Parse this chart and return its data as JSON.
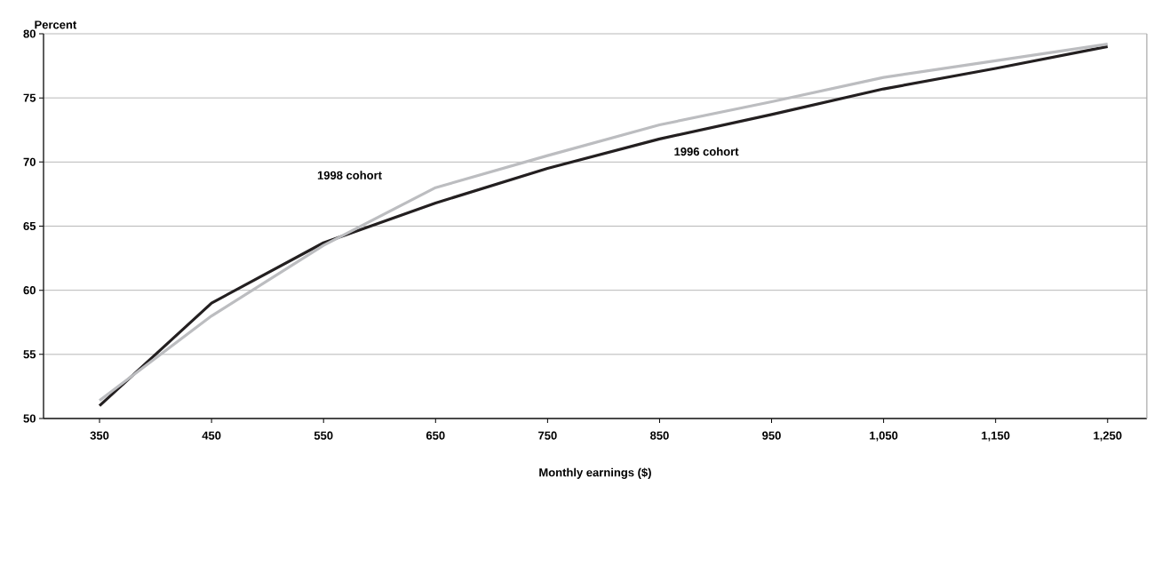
{
  "chart_data": {
    "type": "line",
    "ylabel": "Percent",
    "xlabel": "Monthly earnings ($)",
    "x": [
      350,
      450,
      550,
      650,
      750,
      850,
      950,
      1050,
      1150,
      1250
    ],
    "series": [
      {
        "name": "1996 cohort",
        "color": "#231f20",
        "values": [
          51.0,
          59.0,
          63.7,
          66.8,
          69.5,
          71.8,
          73.7,
          75.7,
          77.3,
          79.0
        ]
      },
      {
        "name": "1998 cohort",
        "color": "#bcbdc0",
        "values": [
          51.4,
          58.0,
          63.5,
          68.0,
          70.5,
          72.9,
          74.7,
          76.6,
          77.9,
          79.2
        ]
      }
    ],
    "xlim": [
      300,
      1285
    ],
    "xticks": [
      350,
      450,
      550,
      650,
      750,
      850,
      950,
      {
        "value": 1050,
        "label": "1,050"
      },
      {
        "value": 1150,
        "label": "1,150"
      },
      {
        "value": 1250,
        "label": "1,250"
      }
    ],
    "ylim": [
      50,
      80
    ],
    "yticks": [
      50,
      55,
      60,
      65,
      70,
      75,
      80
    ],
    "grid": "y",
    "legend": false,
    "marker": "none",
    "line_style": "solid"
  }
}
